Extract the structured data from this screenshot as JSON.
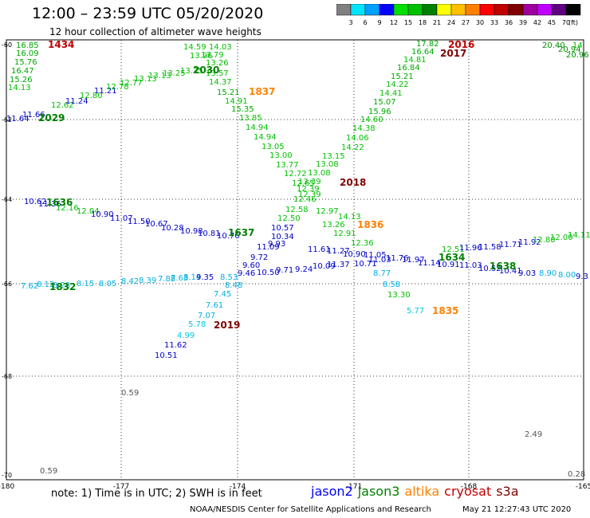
{
  "header": {
    "title": "12:00 – 23:59 UTC 05/20/2020",
    "subtitle": "12 hour collection of altimeter wave heights"
  },
  "colorbar": {
    "colors": [
      "#808080",
      "#00e5ff",
      "#00a0ff",
      "#0000ff",
      "#00e000",
      "#00c000",
      "#008000",
      "#ffff00",
      "#ffc000",
      "#ff8000",
      "#ff0000",
      "#c00000",
      "#800000",
      "#a000a0",
      "#c000ff",
      "#600080",
      "#000000"
    ],
    "labels": [
      "3",
      "6",
      "9",
      "12",
      "15",
      "18",
      "21",
      "24",
      "27",
      "30",
      "33",
      "36",
      "39",
      "42",
      "45",
      "70",
      "(ft)"
    ]
  },
  "axes": {
    "lat_ticks": [
      "-60",
      "-62",
      "-64",
      "-66",
      "-68",
      "-70"
    ],
    "lon_ticks": [
      "-180",
      "-177",
      "-174",
      "-171",
      "-168",
      "-165"
    ]
  },
  "passes": [
    {
      "id": "1434",
      "color": "#c00000",
      "values": [
        "16.85",
        "16.09",
        "15.76",
        "16.47",
        "15.26",
        "14.13"
      ]
    },
    {
      "id": "2029",
      "color": "#008000",
      "values": [
        "11.64",
        "11.66",
        "12.62",
        "11.24",
        "12.80",
        "11.21",
        "12.78",
        "12.77",
        "13.13",
        "13.13",
        "13.25",
        "13.35",
        "14.59",
        "13.96",
        "13.79",
        "14.03",
        "13.26",
        "13.57"
      ]
    },
    {
      "id": "2030",
      "color": "#008000",
      "values": []
    },
    {
      "id": "1837",
      "color": "#ff8000",
      "values": [
        "14.37",
        "15.21",
        "14.91",
        "15.35",
        "13.85",
        "14.94",
        "14.94",
        "13.05",
        "13.00",
        "13.77",
        "12.72",
        "12.65",
        "12.39",
        "12.39",
        "12.46",
        "12.58",
        "12.50"
      ]
    },
    {
      "id": "2018",
      "color": "#800000",
      "values": []
    },
    {
      "id": "2016",
      "color": "#c00000",
      "values": []
    },
    {
      "id": "2017",
      "color": "#800000",
      "values": []
    },
    {
      "id": "1836",
      "color": "#ff8000",
      "values": [
        "13.39",
        "13.08",
        "13.08",
        "13.15",
        "14.22",
        "14.06",
        "14.38",
        "14.60",
        "15.96",
        "15.07",
        "14.41",
        "14.22",
        "15.21",
        "16.84",
        "14.81",
        "16.64",
        "17.82",
        "14.13",
        "12.97",
        "13.26",
        "12.91",
        "12.36"
      ]
    },
    {
      "id": "1636",
      "color": "#008000",
      "values": [
        "10.62",
        "11.36",
        "12.16",
        "12.04",
        "10.90",
        "11.07",
        "11.50",
        "10.67",
        "10.28",
        "10.98",
        "10.81",
        "10.76",
        "10.57",
        "10.34",
        "9.93",
        "11.09",
        "9.72",
        "9.60",
        "9.46",
        "10.50",
        "9.71",
        "9.24",
        "10.09",
        "11.37",
        "11.61",
        "11.27",
        "10.90",
        "11.05",
        "10.71",
        "11.03",
        "11.76",
        "11.97",
        "11.14",
        "10.91",
        "11.03",
        "10.52",
        "10.41",
        "9.03",
        "8.90",
        "8.00",
        "9.3"
      ]
    },
    {
      "id": "1637",
      "color": "#008000",
      "values": [
        "12.51",
        "11.96",
        "11.58",
        "11.71",
        "11.92",
        "12.80",
        "12.00",
        "14.11"
      ]
    },
    {
      "id": "1634",
      "color": "#008000",
      "values": []
    },
    {
      "id": "1638",
      "color": "#008000",
      "values": []
    },
    {
      "id": "1832",
      "color": "#008000",
      "values": [
        "7.62",
        "8.12",
        "8.28",
        "8.15",
        "8.05",
        "8.42",
        "8.39",
        "7.88",
        "7.63",
        "8.14",
        "9.35",
        "8.53",
        "8.48"
      ]
    },
    {
      "id": "1835",
      "color": "#ff8000",
      "values": [
        "7.45",
        "7.61",
        "7.07",
        "5.78",
        "4.99",
        "11.62",
        "10.51",
        "8.77",
        "8.58",
        "13.30",
        "5.77"
      ]
    },
    {
      "id": "2019",
      "color": "#800000",
      "values": []
    },
    {
      "id": "right",
      "color": "#008000",
      "values": [
        "20.40",
        "20.94",
        "20.96",
        "14"
      ]
    }
  ],
  "misc_values": [
    "0.59",
    "2.49",
    "0.59",
    "0.28"
  ],
  "footer": {
    "note": "note: 1) Time is in UTC; 2) SWH is in feet",
    "satellites": [
      {
        "name": "jason2",
        "color": "#0000ff"
      },
      {
        "name": "jason3",
        "color": "#008000"
      },
      {
        "name": "altika",
        "color": "#ff8000"
      },
      {
        "name": "cryosat",
        "color": "#c00000"
      },
      {
        "name": "s3a",
        "color": "#800000"
      }
    ],
    "credit": "NOAA/NESDIS Center for Satellite Applications and Research",
    "timestamp": "May 21 12:27:43 UTC 2020"
  }
}
